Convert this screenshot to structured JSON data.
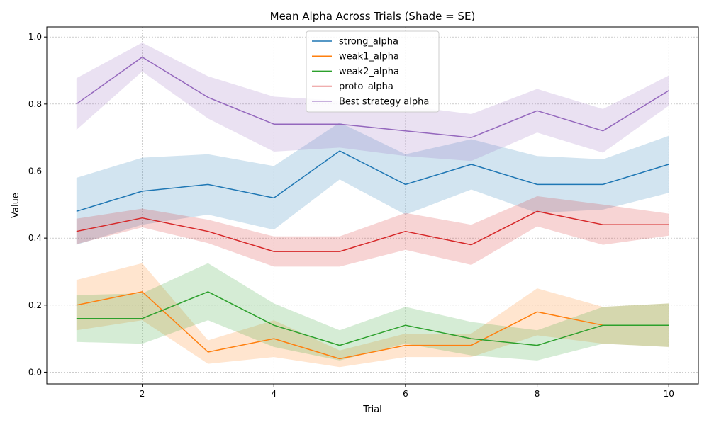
{
  "chart_data": {
    "type": "line",
    "title": "Mean Alpha Across Trials (Shade = SE)",
    "xlabel": "Trial",
    "ylabel": "Value",
    "xlim": [
      0.55,
      10.45
    ],
    "ylim": [
      -0.035,
      1.03
    ],
    "x_ticks": [
      2,
      4,
      6,
      8,
      10
    ],
    "y_ticks": [
      0.0,
      0.2,
      0.4,
      0.6,
      0.8,
      1.0
    ],
    "y_tick_labels": [
      "0.0",
      "0.2",
      "0.4",
      "0.6",
      "0.8",
      "1.0"
    ],
    "grid": true,
    "legend_position": "top-center",
    "x": [
      1,
      2,
      3,
      4,
      5,
      6,
      7,
      8,
      9,
      10
    ],
    "series": [
      {
        "name": "strong_alpha",
        "color": "#1f77b4",
        "values": [
          0.48,
          0.54,
          0.56,
          0.52,
          0.66,
          0.56,
          0.62,
          0.56,
          0.56,
          0.62
        ],
        "se": [
          0.1,
          0.1,
          0.09,
          0.095,
          0.085,
          0.09,
          0.075,
          0.085,
          0.075,
          0.085
        ]
      },
      {
        "name": "weak1_alpha",
        "color": "#ff7f0e",
        "values": [
          0.2,
          0.24,
          0.06,
          0.1,
          0.04,
          0.08,
          0.08,
          0.18,
          0.14,
          0.14
        ],
        "se": [
          0.075,
          0.085,
          0.035,
          0.055,
          0.025,
          0.035,
          0.035,
          0.07,
          0.055,
          0.065
        ]
      },
      {
        "name": "weak2_alpha",
        "color": "#2ca02c",
        "values": [
          0.16,
          0.16,
          0.24,
          0.14,
          0.08,
          0.14,
          0.1,
          0.08,
          0.14,
          0.14
        ],
        "se": [
          0.07,
          0.075,
          0.085,
          0.065,
          0.045,
          0.055,
          0.05,
          0.045,
          0.055,
          0.065
        ]
      },
      {
        "name": "proto_alpha",
        "color": "#d62728",
        "values": [
          0.42,
          0.46,
          0.42,
          0.36,
          0.36,
          0.42,
          0.38,
          0.48,
          0.44,
          0.44
        ],
        "se": [
          0.038,
          0.028,
          0.035,
          0.045,
          0.045,
          0.055,
          0.06,
          0.045,
          0.06,
          0.033
        ]
      },
      {
        "name": "Best strategy alpha",
        "color": "#9467bd",
        "values": [
          0.8,
          0.94,
          0.82,
          0.74,
          0.74,
          0.72,
          0.7,
          0.78,
          0.72,
          0.84
        ],
        "se": [
          0.077,
          0.043,
          0.063,
          0.082,
          0.07,
          0.075,
          0.07,
          0.065,
          0.065,
          0.045
        ]
      }
    ]
  }
}
